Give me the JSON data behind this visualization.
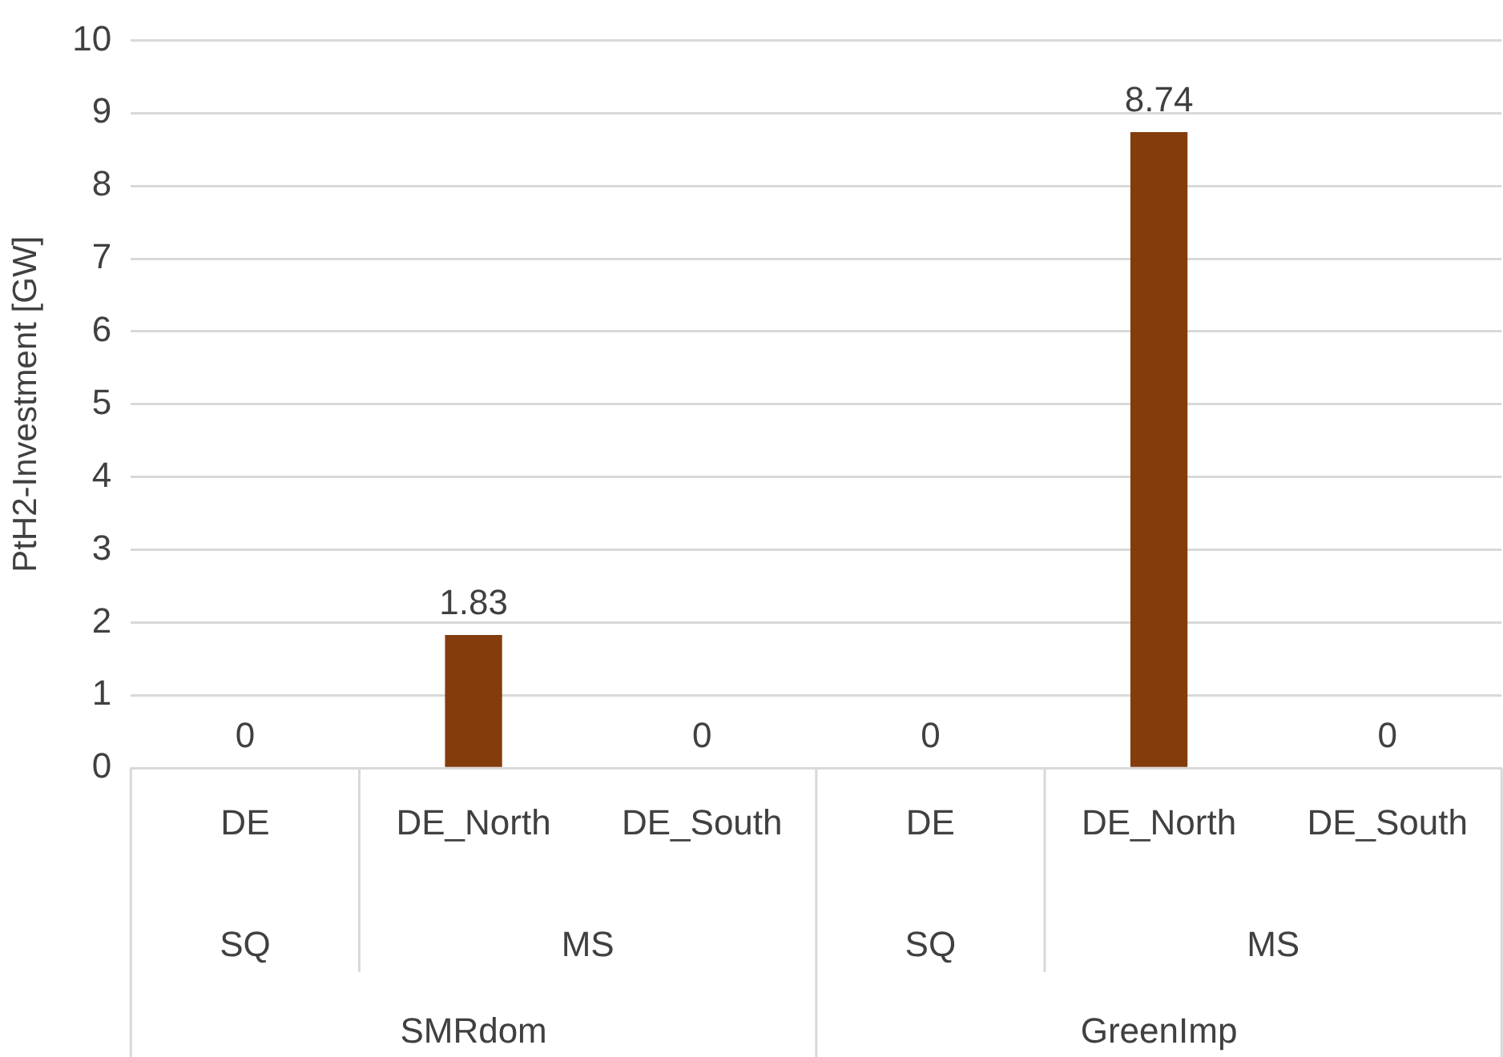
{
  "chart_data": {
    "type": "bar",
    "ylabel": "PtH2-Investment [GW]",
    "categories": [
      "DE",
      "DE_North",
      "DE_South",
      "DE",
      "DE_North",
      "DE_South"
    ],
    "values": [
      0,
      1.83,
      0,
      0,
      8.74,
      0
    ],
    "color": "#843c0c",
    "ylim": [
      0,
      10
    ],
    "yticks": [
      0,
      1,
      2,
      3,
      4,
      5,
      6,
      7,
      8,
      9,
      10
    ],
    "grid": "y",
    "legend": false,
    "data_labels": true,
    "annotations": [
      "SQ",
      "MS",
      "SQ",
      "MS",
      "SMRdom",
      "GreenImp"
    ]
  }
}
